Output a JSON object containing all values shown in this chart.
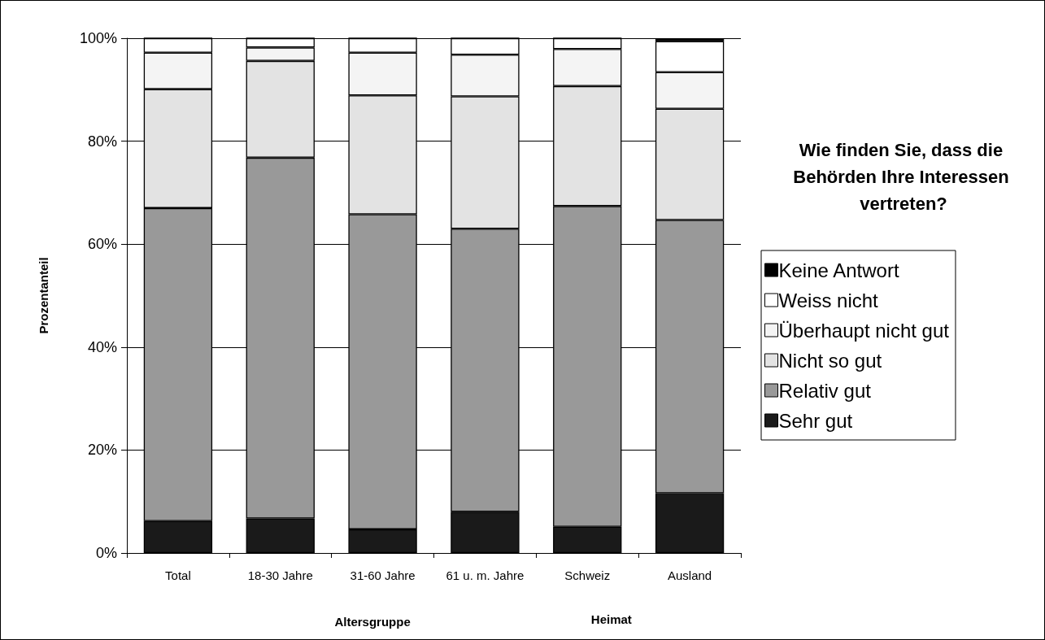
{
  "chart_data": {
    "type": "bar",
    "stacked": true,
    "title": "Wie finden Sie, dass die Behörden Ihre Interessen vertreten?",
    "ylabel": "Prozentanteil",
    "categories": [
      "Total",
      "18-30 Jahre",
      "31-60 Jahre",
      "61 u. m. Jahre",
      "Schweiz",
      "Ausland"
    ],
    "series": [
      {
        "name": "Sehr gut",
        "color": "#1a1a1a",
        "values": [
          6.2,
          6.7,
          4.6,
          8.0,
          5.1,
          11.6
        ]
      },
      {
        "name": "Relativ gut",
        "color": "#999999",
        "values": [
          60.8,
          70.1,
          61.2,
          55.0,
          62.3,
          53.1
        ]
      },
      {
        "name": "Nicht so gut",
        "color": "#e3e3e3",
        "values": [
          23.1,
          18.8,
          23.1,
          25.7,
          23.3,
          21.6
        ]
      },
      {
        "name": "Überhaupt nicht gut",
        "color": "#f4f4f4",
        "values": [
          7.1,
          2.6,
          8.3,
          8.1,
          7.2,
          7.1
        ]
      },
      {
        "name": "Weiss nicht",
        "color": "#ffffff",
        "values": [
          2.8,
          1.8,
          2.8,
          3.2,
          2.1,
          6.0
        ]
      },
      {
        "name": "Keine Antwort",
        "color": "#000000",
        "values": [
          0,
          0,
          0,
          0,
          0,
          0.6
        ]
      }
    ],
    "ylim": [
      0,
      100
    ],
    "yticks": [
      {
        "value": 0,
        "label": "0%"
      },
      {
        "value": 20,
        "label": "20%"
      },
      {
        "value": 40,
        "label": "40%"
      },
      {
        "value": 60,
        "label": "60%"
      },
      {
        "value": 80,
        "label": "80%"
      },
      {
        "value": 100,
        "label": "100%"
      }
    ],
    "grid": "y",
    "legend": "right",
    "annotations": [
      "Altersgruppe",
      "Heimat"
    ]
  }
}
